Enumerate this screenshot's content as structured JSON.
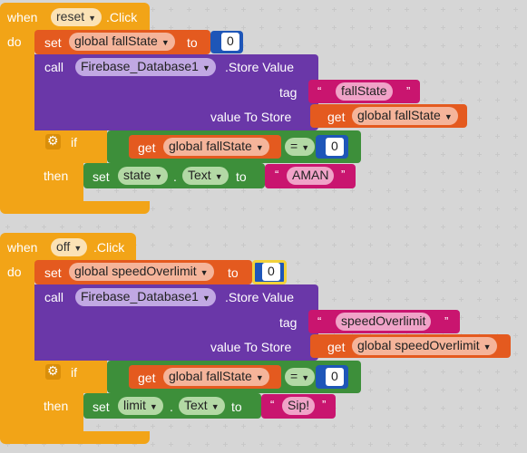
{
  "block1": {
    "when": "when",
    "component": "reset",
    "event": ".Click",
    "do": "do",
    "set1": {
      "set": "set",
      "var": "global fallState",
      "to": "to",
      "value": "0"
    },
    "call": {
      "call": "call",
      "component": "Firebase_Database1",
      "method": ".Store Value",
      "tag_label": "tag",
      "tag_value": "fallState",
      "vts_label": "value To Store",
      "get": "get",
      "get_var": "global fallState"
    },
    "if": {
      "if": "if",
      "get": "get",
      "var": "global fallState",
      "op": "=",
      "value": "0",
      "then": "then",
      "set": "set",
      "comp": "state",
      "prop": "Text",
      "to": "to",
      "text": "AMAN"
    }
  },
  "block2": {
    "when": "when",
    "component": "off",
    "event": ".Click",
    "do": "do",
    "set1": {
      "set": "set",
      "var": "global speedOverlimit",
      "to": "to",
      "value": "0"
    },
    "call": {
      "call": "call",
      "component": "Firebase_Database1",
      "method": ".Store Value",
      "tag_label": "tag",
      "tag_value": "speedOverlimit",
      "vts_label": "value To Store",
      "get": "get",
      "get_var": "global speedOverlimit"
    },
    "if": {
      "if": "if",
      "get": "get",
      "var": "global fallState",
      "op": "=",
      "value": "0",
      "then": "then",
      "set": "set",
      "comp": "limit",
      "prop": "Text",
      "to": "to",
      "text": "Sip!"
    }
  },
  "colors": {
    "event": "#f2a417",
    "variable": "#e45a1f",
    "component": "#6a37a8",
    "logic": "#3d8f3a",
    "text": "#c9156f",
    "math": "#1e56b8"
  },
  "icons": {
    "gear": "gear-icon",
    "dropdown": "dropdown-arrow-icon"
  }
}
